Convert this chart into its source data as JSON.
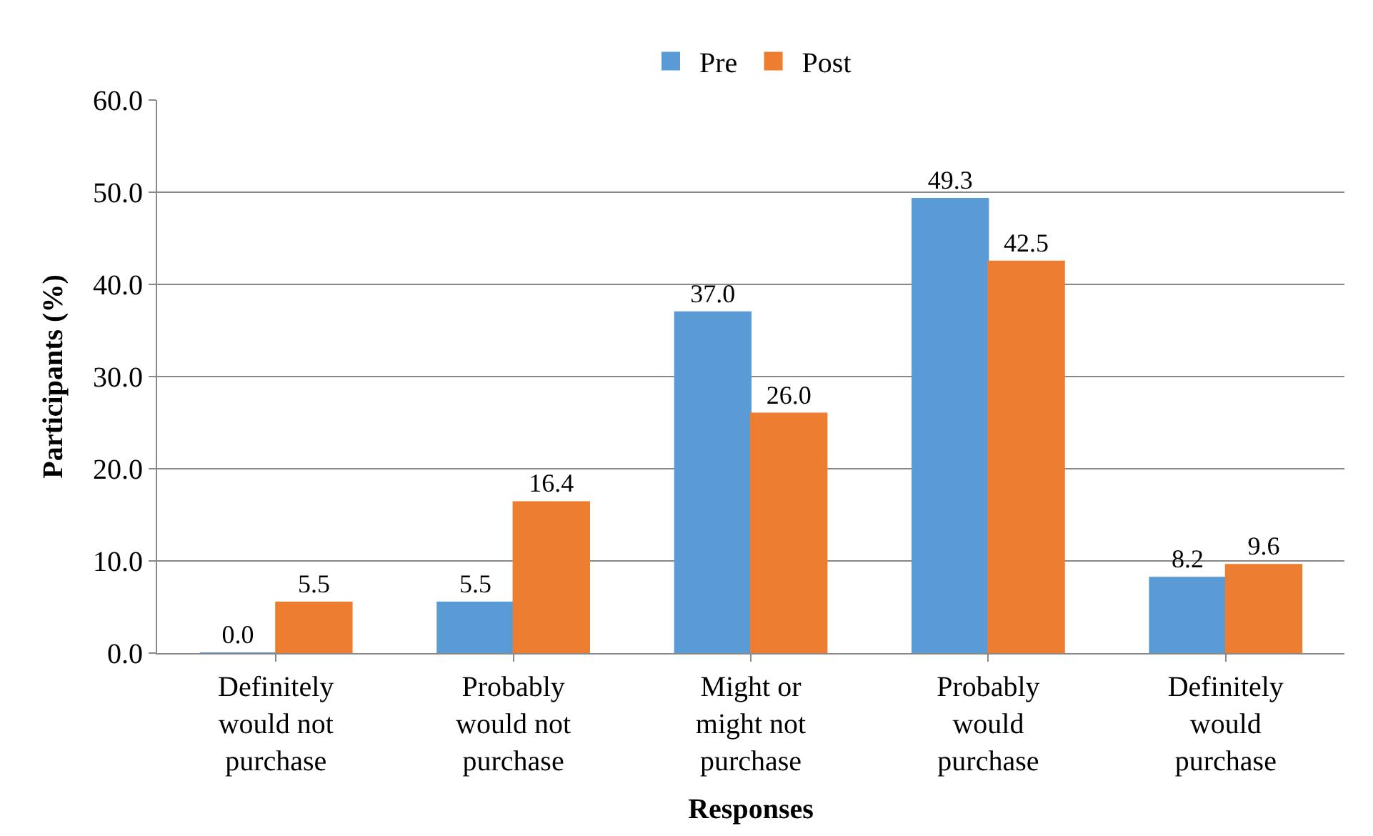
{
  "chart_data": {
    "type": "bar",
    "xlabel": "Responses",
    "ylabel": "Participants (%)",
    "categories": [
      "Definitely would not purchase",
      "Probably would not purchase",
      "Might or might not purchase",
      "Probably would purchase",
      "Definitely would purchase"
    ],
    "series": [
      {
        "name": "Pre",
        "color": "#5b9bd5",
        "values": [
          0.0,
          5.5,
          37.0,
          49.3,
          8.2
        ],
        "value_labels": [
          "0.0",
          "5.5",
          "37.0",
          "49.3",
          "8.2"
        ]
      },
      {
        "name": "Post",
        "color": "#ed7d31",
        "values": [
          5.5,
          16.4,
          26.0,
          42.5,
          9.6
        ],
        "value_labels": [
          "5.5",
          "16.4",
          "26.0",
          "42.5",
          "9.6"
        ]
      }
    ],
    "ylim": [
      0,
      60
    ],
    "yticks": [
      {
        "value": 0,
        "label": "0.0"
      },
      {
        "value": 10,
        "label": "10.0"
      },
      {
        "value": 20,
        "label": "20.0"
      },
      {
        "value": 30,
        "label": "30.0"
      },
      {
        "value": 40,
        "label": "40.0"
      },
      {
        "value": 50,
        "label": "50.0"
      },
      {
        "value": 60,
        "label": "60.0"
      }
    ],
    "grid": "y",
    "legend": "top"
  }
}
